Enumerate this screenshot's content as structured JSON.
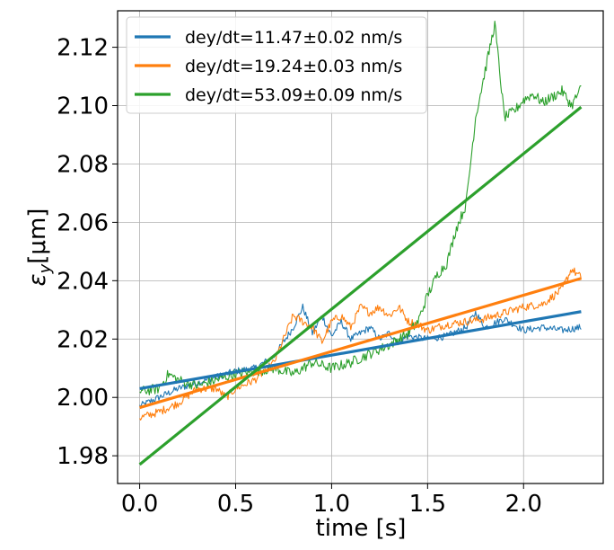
{
  "chart_data": {
    "type": "line",
    "title": "",
    "xlabel": "time [s]",
    "ylabel_symbol": "ε",
    "ylabel_subscript": "y",
    "ylabel_unit": "[μm]",
    "xlim": [
      -0.115,
      2.415
    ],
    "ylim": [
      1.9705,
      2.1325
    ],
    "xticks": [
      0.0,
      0.5,
      1.0,
      1.5,
      2.0
    ],
    "xtick_labels": [
      "0.0",
      "0.5",
      "1.0",
      "1.5",
      "2.0"
    ],
    "yticks": [
      1.98,
      2.0,
      2.02,
      2.04,
      2.06,
      2.08,
      2.1,
      2.12
    ],
    "ytick_labels": [
      "1.98",
      "2.00",
      "2.02",
      "2.04",
      "2.06",
      "2.08",
      "2.10",
      "2.12"
    ],
    "grid": true,
    "legend_position": "top-left",
    "series": [
      {
        "name": "dey/dt=11.47±0.02 nm/s",
        "color": "#1f77b4",
        "noise": 0.0012,
        "x": [
          0.0,
          0.1,
          0.2,
          0.3,
          0.4,
          0.5,
          0.6,
          0.7,
          0.75,
          0.8,
          0.85,
          0.9,
          0.95,
          1.0,
          1.05,
          1.1,
          1.15,
          1.2,
          1.25,
          1.3,
          1.35,
          1.4,
          1.5,
          1.6,
          1.7,
          1.75,
          1.8,
          1.9,
          2.0,
          2.1,
          2.2,
          2.3
        ],
        "y": [
          1.997,
          2.0,
          2.003,
          2.005,
          2.007,
          2.009,
          2.01,
          2.014,
          2.019,
          2.024,
          2.031,
          2.022,
          2.028,
          2.021,
          2.026,
          2.02,
          2.022,
          2.024,
          2.02,
          2.022,
          2.019,
          2.021,
          2.02,
          2.021,
          2.024,
          2.029,
          2.024,
          2.027,
          2.023,
          2.024,
          2.023,
          2.024
        ],
        "fit": [
          2.003,
          2.0294
        ]
      },
      {
        "name": "dey/dt=19.24±0.03 nm/s",
        "color": "#ff7f0e",
        "noise": 0.0014,
        "x": [
          0.0,
          0.1,
          0.2,
          0.3,
          0.4,
          0.45,
          0.5,
          0.6,
          0.7,
          0.75,
          0.8,
          0.85,
          0.9,
          0.95,
          1.0,
          1.05,
          1.1,
          1.15,
          1.2,
          1.25,
          1.3,
          1.35,
          1.4,
          1.45,
          1.5,
          1.6,
          1.7,
          1.8,
          1.9,
          2.0,
          2.1,
          2.2,
          2.25,
          2.3
        ],
        "y": [
          1.993,
          1.995,
          1.998,
          2.003,
          2.003,
          2.0,
          2.003,
          2.006,
          2.012,
          2.02,
          2.028,
          2.026,
          2.024,
          2.019,
          2.026,
          2.028,
          2.024,
          2.031,
          2.029,
          2.031,
          2.028,
          2.031,
          2.026,
          2.025,
          2.023,
          2.025,
          2.026,
          2.027,
          2.029,
          2.031,
          2.032,
          2.037,
          2.044,
          2.041
        ],
        "fit": [
          1.9965,
          2.0408
        ]
      },
      {
        "name": "dey/dt=53.09±0.09 nm/s",
        "color": "#2ca02c",
        "noise": 0.0018,
        "x": [
          0.0,
          0.1,
          0.15,
          0.2,
          0.3,
          0.4,
          0.5,
          0.6,
          0.7,
          0.8,
          0.9,
          1.0,
          1.1,
          1.2,
          1.3,
          1.4,
          1.45,
          1.5,
          1.55,
          1.6,
          1.65,
          1.7,
          1.75,
          1.8,
          1.85,
          1.9,
          1.95,
          2.0,
          2.05,
          2.1,
          2.15,
          2.2,
          2.25,
          2.3
        ],
        "y": [
          2.002,
          2.003,
          2.008,
          2.006,
          2.004,
          2.006,
          2.008,
          2.009,
          2.01,
          2.008,
          2.012,
          2.01,
          2.012,
          2.015,
          2.018,
          2.022,
          2.026,
          2.035,
          2.042,
          2.046,
          2.058,
          2.066,
          2.096,
          2.112,
          2.128,
          2.096,
          2.098,
          2.102,
          2.104,
          2.101,
          2.103,
          2.105,
          2.1,
          2.106
        ],
        "fit": [
          1.977,
          2.0995
        ]
      }
    ]
  }
}
